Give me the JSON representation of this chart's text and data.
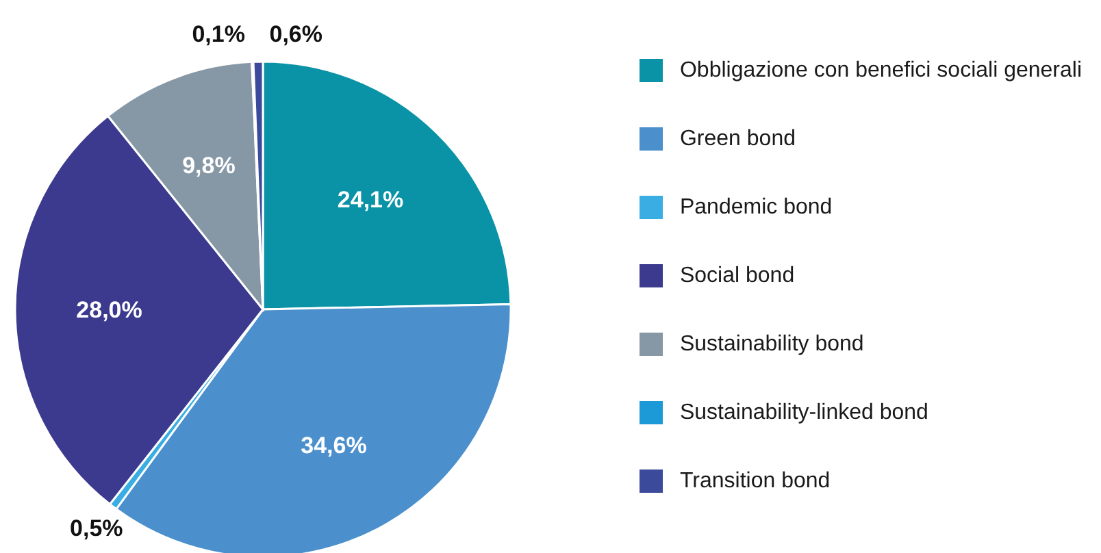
{
  "chart_data": {
    "type": "pie",
    "categories": [
      "Obbligazione con benefici sociali generali",
      "Green bond",
      "Pandemic bond",
      "Social bond",
      "Sustainability bond",
      "Sustainability-linked bond",
      "Transition bond"
    ],
    "values": [
      24.1,
      34.6,
      0.5,
      28.0,
      9.8,
      0.1,
      0.6
    ],
    "value_labels": [
      "24,1%",
      "34,6%",
      "0,5%",
      "28,0%",
      "9,8%",
      "0,1%",
      "0,6%"
    ],
    "colors": [
      "#0a93a6",
      "#4b90cc",
      "#3aaee2",
      "#3b3a8e",
      "#8698a6",
      "#1c9ad8",
      "#3b4a9a"
    ],
    "legend": "right"
  }
}
